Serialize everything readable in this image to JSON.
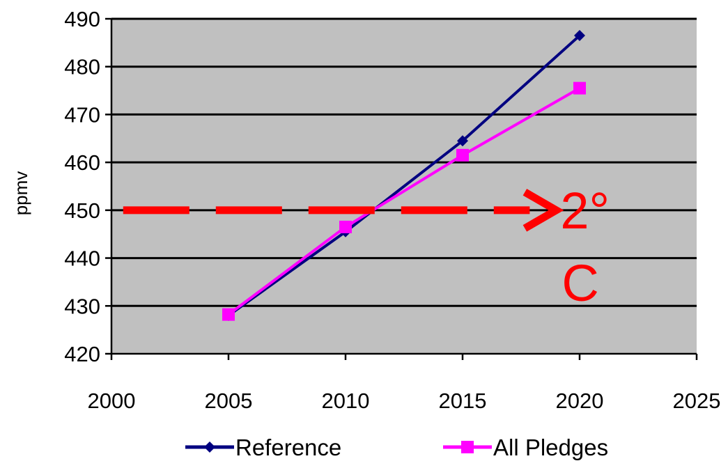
{
  "chart_data": {
    "type": "line",
    "title": "",
    "xlabel": "",
    "ylabel": "ppmv",
    "xlim": [
      2000,
      2025
    ],
    "ylim": [
      420,
      490
    ],
    "xticks": [
      2000,
      2005,
      2010,
      2015,
      2020,
      2025
    ],
    "yticks": [
      420,
      430,
      440,
      450,
      460,
      470,
      480,
      490
    ],
    "grid": "horizontal",
    "legend_position": "bottom",
    "plot_background": "#c0c0c0",
    "series": [
      {
        "name": "Reference",
        "color": "#000080",
        "marker": "diamond",
        "x": [
          2005,
          2010,
          2015,
          2020
        ],
        "y": [
          428,
          445.5,
          464.5,
          486.5
        ]
      },
      {
        "name": "All Pledges",
        "color": "#ff00ff",
        "marker": "square",
        "x": [
          2005,
          2010,
          2015,
          2020
        ],
        "y": [
          428.2,
          446.5,
          461.5,
          475.5
        ]
      }
    ],
    "annotations": [
      {
        "type": "dashed-arrow",
        "y": 450,
        "x_from": 2000.5,
        "x_to": 2019,
        "color": "#ff0000",
        "label": "2°\nC",
        "label_lines": [
          "2°",
          "C"
        ]
      }
    ]
  }
}
